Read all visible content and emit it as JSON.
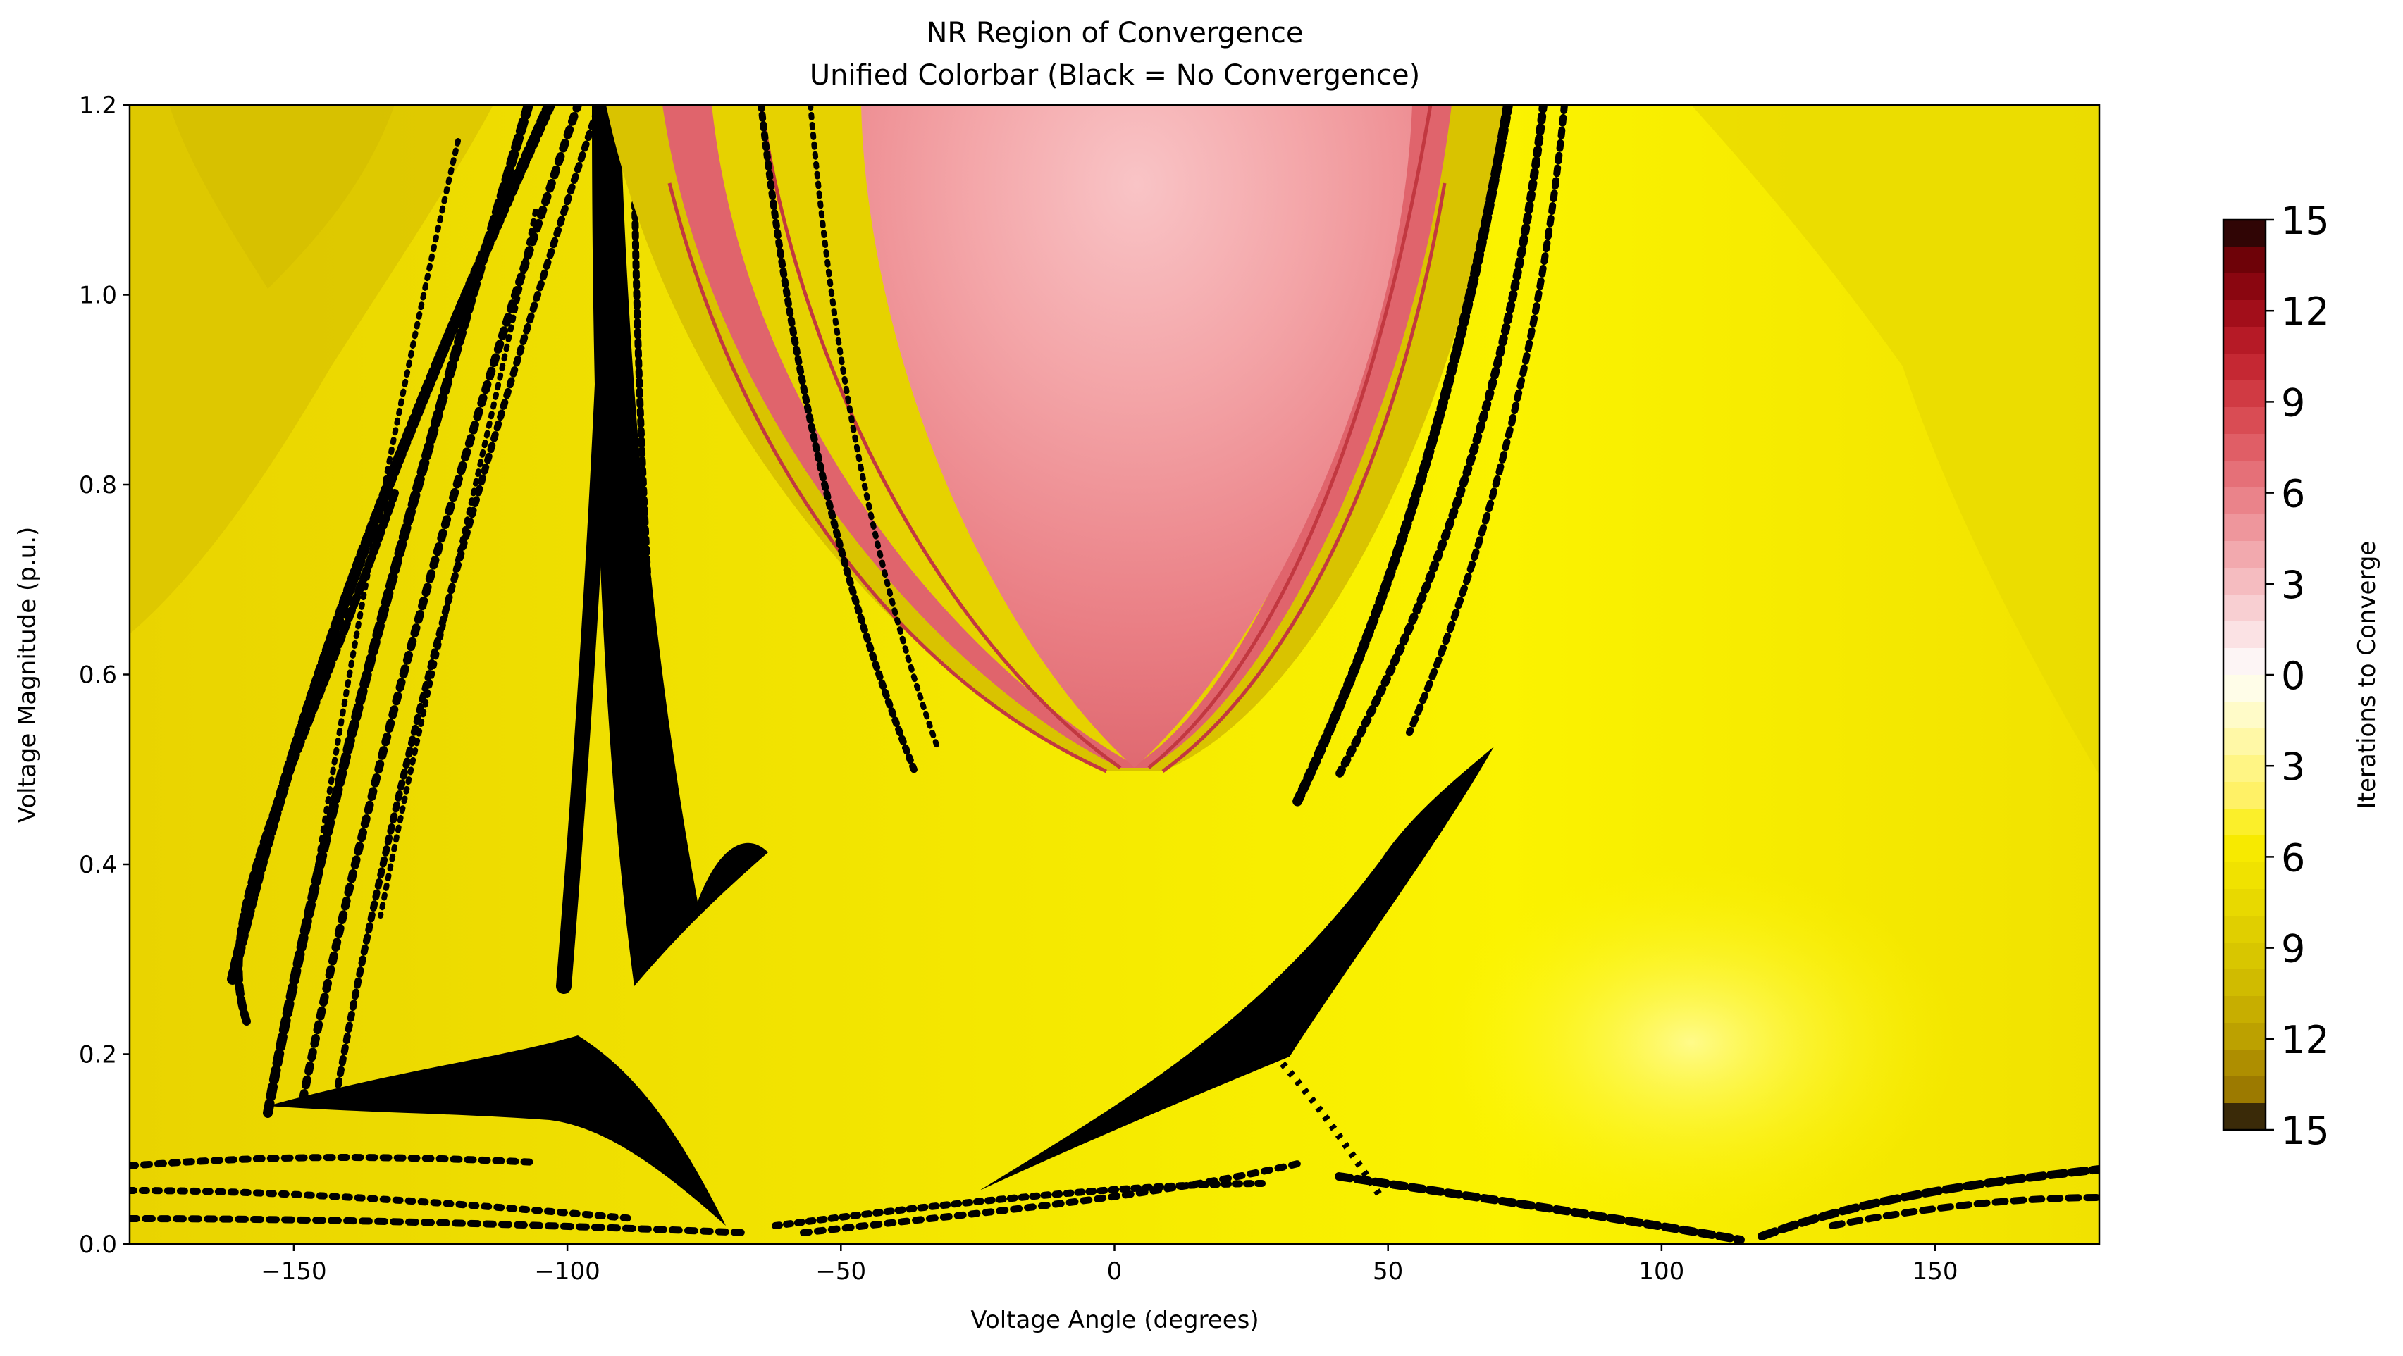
{
  "chart_data": {
    "type": "heatmap",
    "title_line1": "NR Region of Convergence",
    "title_line2": "Unified Colorbar (Black = No Convergence)",
    "xlabel": "Voltage Angle (degrees)",
    "ylabel": "Voltage Magnitude (p.u.)",
    "xlim": [
      -180,
      180
    ],
    "ylim": [
      0.0,
      1.2
    ],
    "x_ticks": [
      {
        "value": -150,
        "label": "−150"
      },
      {
        "value": -100,
        "label": "−100"
      },
      {
        "value": -50,
        "label": "−50"
      },
      {
        "value": 0,
        "label": "0"
      },
      {
        "value": 50,
        "label": "50"
      },
      {
        "value": 100,
        "label": "100"
      },
      {
        "value": 150,
        "label": "150"
      }
    ],
    "y_ticks": [
      {
        "value": 0.0,
        "label": "0.0"
      },
      {
        "value": 0.2,
        "label": "0.2"
      },
      {
        "value": 0.4,
        "label": "0.4"
      },
      {
        "value": 0.6,
        "label": "0.6"
      },
      {
        "value": 0.8,
        "label": "0.8"
      },
      {
        "value": 1.0,
        "label": "1.0"
      },
      {
        "value": 1.2,
        "label": "1.2"
      }
    ],
    "colorbar": {
      "label": "Iterations to Converge",
      "tick_labels": [
        "15",
        "12",
        "9",
        "6",
        "3",
        "0",
        "3",
        "6",
        "9",
        "12",
        "15"
      ],
      "red_scale": [
        "#fdf5f5",
        "#fbe2e4",
        "#f8cfd2",
        "#f5bcc0",
        "#f2a9ae",
        "#ee969c",
        "#ea838a",
        "#e57078",
        "#e05e66",
        "#d94c54",
        "#d03a43",
        "#c52833",
        "#b61a26",
        "#a20e1a",
        "#8a0610",
        "#6e0208",
        "#300505"
      ],
      "yellow_scale": [
        "#fffde8",
        "#fffbc8",
        "#fff8a6",
        "#fff584",
        "#fff166",
        "#fbef2a",
        "#f7ea00",
        "#f0e200",
        "#e8d900",
        "#e0cf00",
        "#d8c600",
        "#d0bb00",
        "#c7ae00",
        "#bca100",
        "#ae8e00",
        "#9c7a00",
        "#3a2a08"
      ],
      "black": "#000000"
    },
    "colors": {
      "base_yellow": "#f4e800",
      "bright_yellow": "#fcf700",
      "ochre": "#d9c300",
      "deep_ochre": "#c9b000",
      "pink_outer": "#e06b72",
      "pink_mid": "#ef9097",
      "pink_inner": "#f7b8bc",
      "non_convergence": "#000000"
    }
  }
}
